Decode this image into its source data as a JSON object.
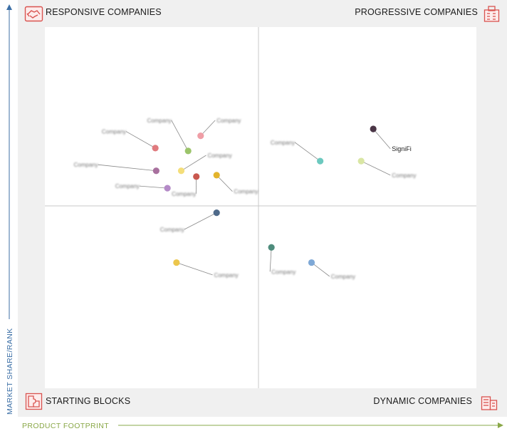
{
  "chart_data": {
    "type": "scatter",
    "quadrants": {
      "top_left": "RESPONSIVE COMPANIES",
      "top_right": "PROGRESSIVE COMPANIES",
      "bottom_left": "STARTING BLOCKS",
      "bottom_right": "DYNAMIC COMPANIES"
    },
    "xlabel": "PRODUCT FOOTPRINT",
    "ylabel": "MARKET SHARE/RANK",
    "xlim": [
      0,
      100
    ],
    "ylim": [
      0,
      100
    ],
    "points": [
      {
        "label": "",
        "x": 25.6,
        "y": 66.5,
        "color": "#e07a7e",
        "label_x": 18.5,
        "label_y": 70.5
      },
      {
        "label": "",
        "x": 33.2,
        "y": 65.7,
        "color": "#9bc46a",
        "label_x": 29.0,
        "label_y": 73.6
      },
      {
        "label": "",
        "x": 36.1,
        "y": 69.9,
        "color": "#ef9ea6",
        "label_x": 39.8,
        "label_y": 73.6
      },
      {
        "label": "",
        "x": 25.8,
        "y": 60.2,
        "color": "#a8709e",
        "label_x": 12.0,
        "label_y": 61.3
      },
      {
        "label": "",
        "x": 31.6,
        "y": 60.2,
        "color": "#f4de7a",
        "label_x": 37.7,
        "label_y": 63.9
      },
      {
        "label": "",
        "x": 35.1,
        "y": 58.6,
        "color": "#c9584f",
        "label_x": 34.7,
        "label_y": 53.3
      },
      {
        "label": "",
        "x": 39.8,
        "y": 59.0,
        "color": "#e3b42c",
        "label_x": 43.8,
        "label_y": 53.9
      },
      {
        "label": "",
        "x": 28.4,
        "y": 55.4,
        "color": "#b48ac7",
        "label_x": 21.6,
        "label_y": 55.4
      },
      {
        "label": "",
        "x": 39.8,
        "y": 48.6,
        "color": "#4f6a8a",
        "label_x": 32.0,
        "label_y": 43.4
      },
      {
        "label": "",
        "x": 30.5,
        "y": 34.8,
        "color": "#ecc64c",
        "label_x": 39.2,
        "label_y": 30.8
      },
      {
        "label": "",
        "x": 63.8,
        "y": 62.9,
        "color": "#6cc9bf",
        "label_x": 57.6,
        "label_y": 67.5
      },
      {
        "label": "SigniFi",
        "x": 76.1,
        "y": 71.8,
        "color": "#4a3546",
        "label_x": 80.4,
        "label_y": 65.7
      },
      {
        "label": "",
        "x": 73.3,
        "y": 62.9,
        "color": "#d9e6a4",
        "label_x": 80.4,
        "label_y": 58.4
      },
      {
        "label": "",
        "x": 52.5,
        "y": 39.0,
        "color": "#4e8c7c",
        "label_x": 52.5,
        "label_y": 31.7
      },
      {
        "label": "",
        "x": 61.8,
        "y": 34.8,
        "color": "#7ea8d6",
        "label_x": 66.3,
        "label_y": 30.4
      }
    ]
  }
}
